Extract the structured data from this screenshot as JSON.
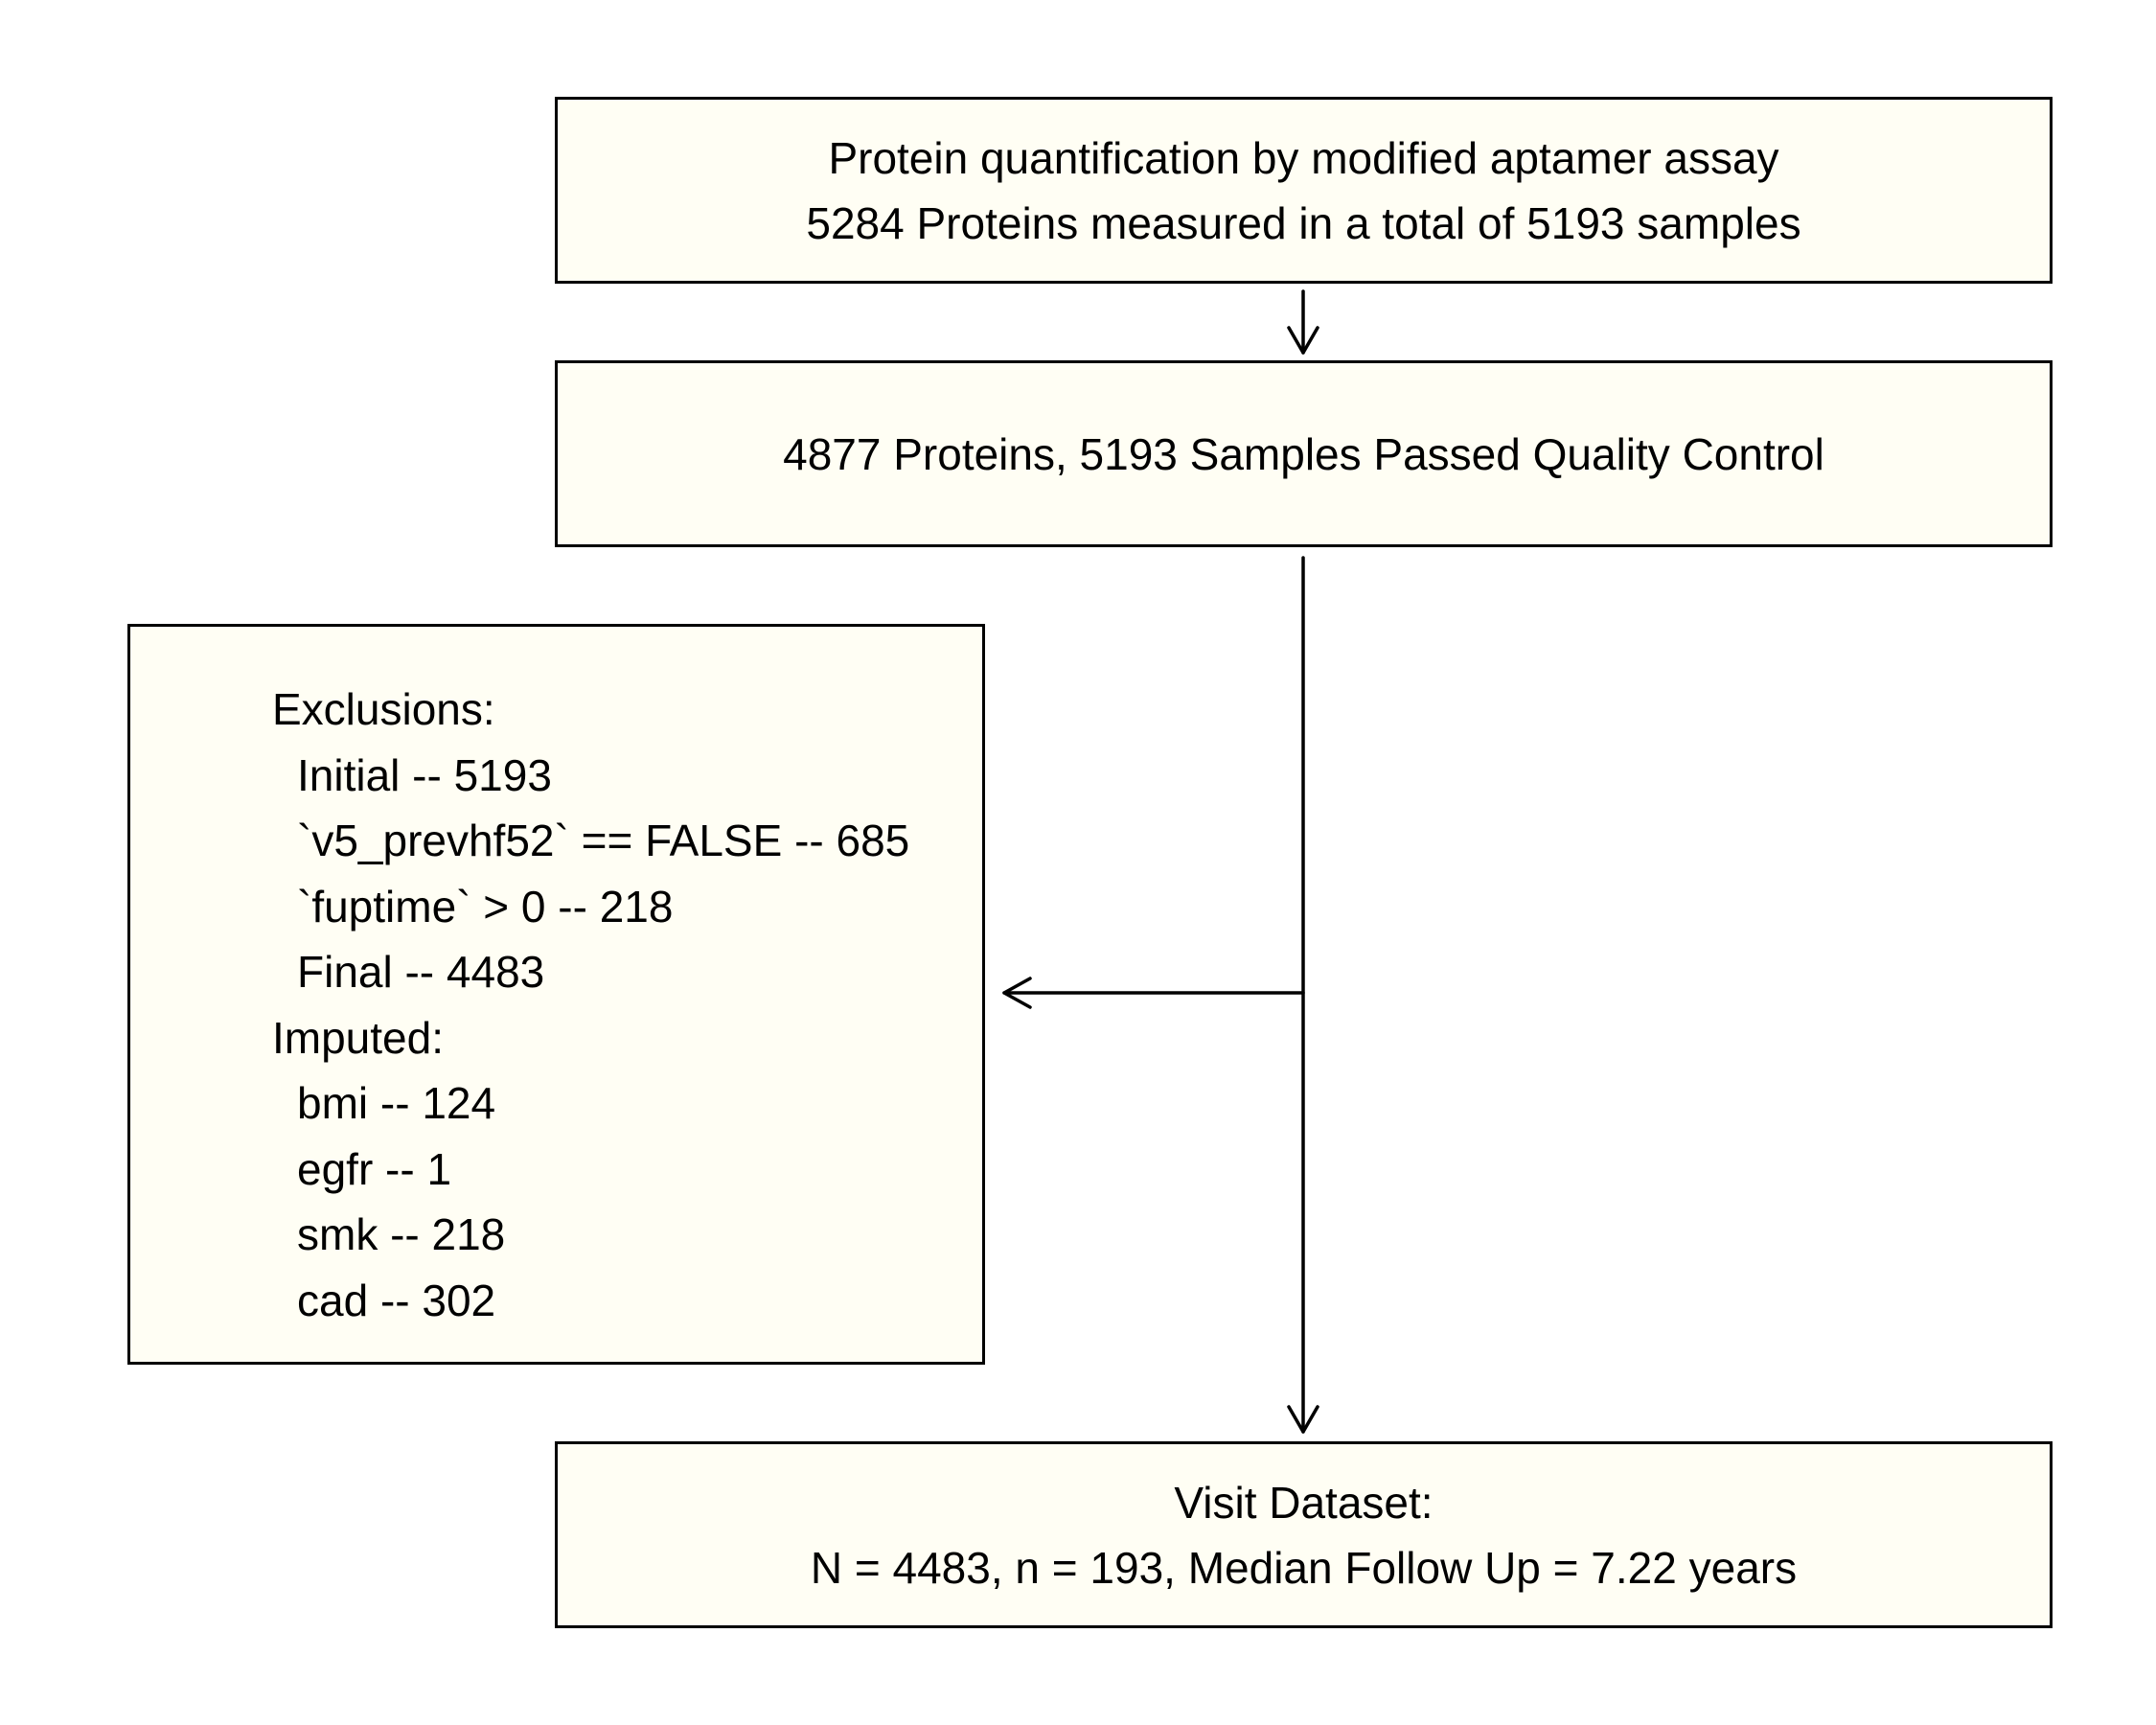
{
  "diagram": {
    "box_quantification": {
      "line1": "Protein quantification by modified aptamer assay",
      "line2": "5284 Proteins measured in a total of 5193 samples"
    },
    "box_qc": {
      "line1": "4877 Proteins, 5193 Samples Passed Quality Control"
    },
    "box_exclusions": {
      "exclusions_header": "Exclusions:",
      "exclusions": [
        "Initial -- 5193",
        "`v5_prevhf52` == FALSE -- 685",
        "`fuptime` > 0 -- 218",
        "Final -- 4483"
      ],
      "imputed_header": "Imputed:",
      "imputed": [
        "bmi -- 124",
        "egfr -- 1",
        "smk -- 218",
        "cad -- 302"
      ]
    },
    "box_final": {
      "line1": "Visit Dataset:",
      "line2": "N = 4483, n = 193, Median Follow Up = 7.22 years"
    },
    "colors": {
      "box_fill": "#fffef4",
      "stroke": "#000000"
    }
  }
}
